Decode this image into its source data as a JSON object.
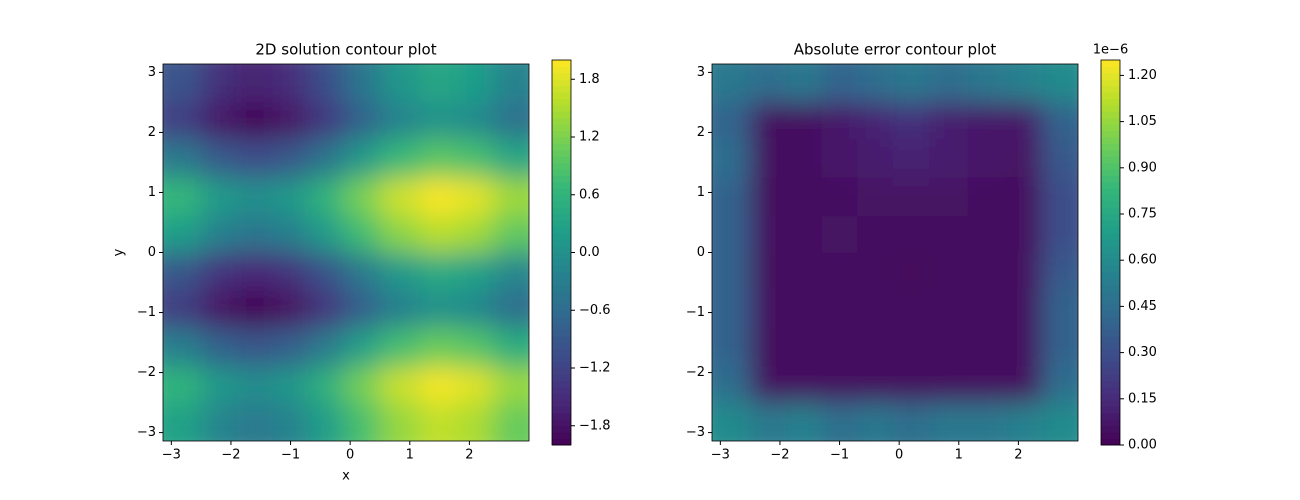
{
  "chart_data": [
    {
      "type": "contour",
      "title": "2D solution contour plot",
      "xlabel": "x",
      "ylabel": "y",
      "xlim": [
        -3.14,
        3.0
      ],
      "ylim": [
        -3.14,
        3.14
      ],
      "xticks": [
        {
          "value": -3,
          "label": "−3"
        },
        {
          "value": -2,
          "label": "−2"
        },
        {
          "value": -1,
          "label": "−1"
        },
        0,
        1,
        2
      ],
      "yticks": [
        {
          "value": -3,
          "label": "−3"
        },
        {
          "value": -2,
          "label": "−2"
        },
        {
          "value": -1,
          "label": "−1"
        },
        0,
        1,
        2,
        3
      ],
      "x": [
        -2.8,
        -2.2,
        -1.6,
        -1.0,
        -0.4,
        0.2,
        0.8,
        1.5,
        2.1,
        2.7
      ],
      "y": [
        2.8,
        2.2,
        1.6,
        0.9,
        0.3,
        -0.3,
        -0.9,
        -1.6,
        -2.2,
        -2.8
      ],
      "z": [
        [
          -0.96,
          -1.44,
          -1.63,
          -1.47,
          -1.02,
          -0.43,
          0.09,
          0.37,
          0.23,
          -0.2
        ],
        [
          -1.28,
          -1.76,
          -1.95,
          -1.79,
          -1.34,
          -0.75,
          -0.23,
          0.05,
          -0.09,
          -0.52
        ],
        [
          -0.39,
          -0.87,
          -1.06,
          -0.9,
          -0.45,
          0.14,
          0.66,
          0.94,
          0.8,
          0.37
        ],
        [
          0.64,
          0.16,
          -0.03,
          0.13,
          0.58,
          1.17,
          1.69,
          1.97,
          1.83,
          1.4
        ],
        [
          0.23,
          -0.25,
          -0.44,
          -0.28,
          0.17,
          0.76,
          1.28,
          1.56,
          1.42,
          0.99
        ],
        [
          -0.89,
          -1.37,
          -1.56,
          -1.4,
          -0.95,
          -0.36,
          0.16,
          0.44,
          0.3,
          -0.13
        ],
        [
          -1.3,
          -1.78,
          -1.97,
          -1.81,
          -1.36,
          -0.77,
          -0.25,
          0.03,
          -0.11,
          -0.54
        ],
        [
          -0.27,
          -0.75,
          -0.94,
          -0.78,
          -0.33,
          0.26,
          0.78,
          1.06,
          0.92,
          0.49
        ],
        [
          0.62,
          0.14,
          -0.05,
          0.11,
          0.56,
          1.15,
          1.67,
          1.95,
          1.81,
          1.38
        ],
        [
          0.3,
          -0.18,
          -0.37,
          -0.21,
          0.24,
          0.83,
          1.35,
          1.63,
          1.49,
          1.06
        ]
      ],
      "colorbar": {
        "clim": [
          -2,
          2
        ],
        "colormap": "viridis",
        "ticks": [
          {
            "value": -1.8,
            "label": "−1.8"
          },
          {
            "value": -1.2,
            "label": "−1.2"
          },
          {
            "value": -0.6,
            "label": "−0.6"
          },
          {
            "value": 0,
            "label": "0.0"
          },
          0.6,
          1.2,
          1.8
        ]
      }
    },
    {
      "type": "contour",
      "title": "Absolute error contour plot",
      "xlim": [
        -3.14,
        3.0
      ],
      "ylim": [
        -3.14,
        3.14
      ],
      "xticks": [
        {
          "value": -3,
          "label": "−3"
        },
        {
          "value": -2,
          "label": "−2"
        },
        {
          "value": -1,
          "label": "−1"
        },
        0,
        1,
        2
      ],
      "yticks": [
        {
          "value": -3,
          "label": "−3"
        },
        {
          "value": -2,
          "label": "−2"
        },
        {
          "value": -1,
          "label": "−1"
        },
        0,
        1,
        2,
        3
      ],
      "x": [
        -2.8,
        -2.2,
        -1.6,
        -1.0,
        -0.4,
        0.2,
        0.8,
        1.5,
        2.1,
        2.7
      ],
      "y": [
        2.8,
        2.2,
        1.6,
        0.9,
        0.3,
        -0.3,
        -0.9,
        -1.6,
        -2.2,
        -2.8
      ],
      "z": [
        [
          0.5,
          0.45,
          0.5,
          0.4,
          0.45,
          0.5,
          0.45,
          0.5,
          0.55,
          0.6
        ],
        [
          0.4,
          0.05,
          0.05,
          0.08,
          0.12,
          0.18,
          0.1,
          0.08,
          0.08,
          0.4
        ],
        [
          0.45,
          0.05,
          0.05,
          0.08,
          0.1,
          0.12,
          0.1,
          0.08,
          0.06,
          0.35
        ],
        [
          0.4,
          0.04,
          0.04,
          0.05,
          0.06,
          0.06,
          0.06,
          0.05,
          0.05,
          0.3
        ],
        [
          0.4,
          0.05,
          0.05,
          0.06,
          0.04,
          0.04,
          0.04,
          0.04,
          0.05,
          0.3
        ],
        [
          0.4,
          0.04,
          0.04,
          0.05,
          0.04,
          0.03,
          0.04,
          0.04,
          0.05,
          0.35
        ],
        [
          0.4,
          0.05,
          0.04,
          0.04,
          0.05,
          0.04,
          0.04,
          0.05,
          0.05,
          0.4
        ],
        [
          0.4,
          0.04,
          0.04,
          0.05,
          0.04,
          0.04,
          0.04,
          0.05,
          0.05,
          0.4
        ],
        [
          0.45,
          0.05,
          0.05,
          0.05,
          0.05,
          0.05,
          0.05,
          0.05,
          0.05,
          0.45
        ],
        [
          0.6,
          0.5,
          0.55,
          0.45,
          0.5,
          0.45,
          0.5,
          0.5,
          0.55,
          0.6
        ]
      ],
      "colorbar": {
        "clim": [
          0,
          1.25
        ],
        "colormap": "viridis",
        "offset_label": "1e−6",
        "ticks": [
          {
            "value": 0,
            "label": "0.00"
          },
          0.15,
          {
            "value": 0.3,
            "label": "0.30"
          },
          0.45,
          {
            "value": 0.6,
            "label": "0.60"
          },
          0.75,
          {
            "value": 0.9,
            "label": "0.90"
          },
          1.05,
          {
            "value": 1.2,
            "label": "1.20"
          }
        ]
      }
    }
  ]
}
